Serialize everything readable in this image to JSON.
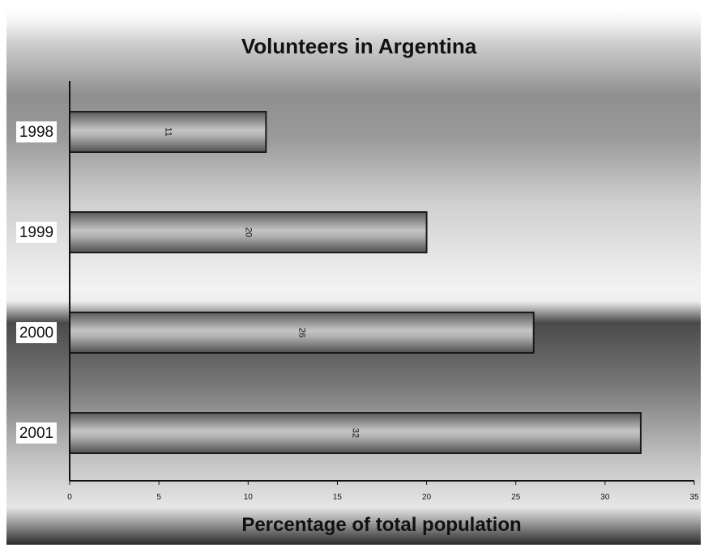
{
  "chart_data": {
    "type": "bar",
    "orientation": "horizontal",
    "title": "Volunteers in Argentina",
    "xlabel": "Percentage of total population",
    "ylabel": "",
    "categories": [
      "1998",
      "1999",
      "2000",
      "2001"
    ],
    "values": [
      11,
      20,
      26,
      32
    ],
    "data_labels": [
      "11",
      "20",
      "26",
      "32"
    ],
    "xlim": [
      0,
      35
    ],
    "xticks": [
      "0",
      "5",
      "10",
      "15",
      "20",
      "25",
      "30",
      "35"
    ],
    "grid": false,
    "legend": "none"
  },
  "colors": {
    "bar_stroke": "#1a1a1a",
    "axis": "#111111",
    "text": "#111111",
    "category_label_bg": "#ffffff"
  }
}
